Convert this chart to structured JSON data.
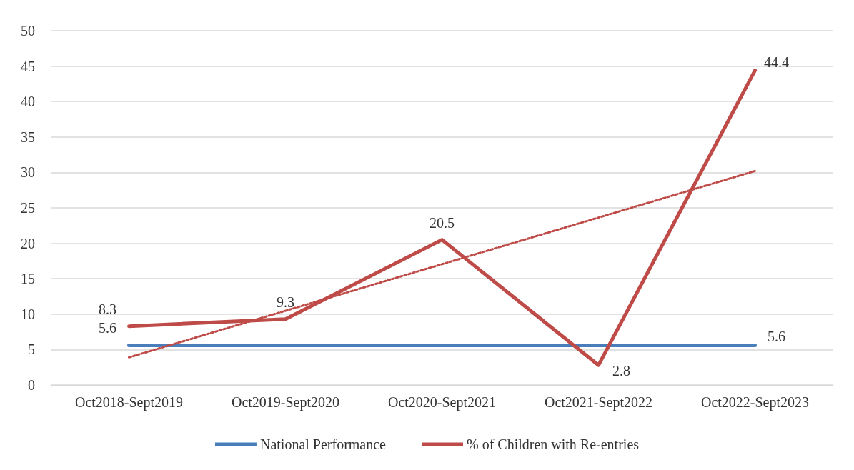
{
  "chart_data": {
    "type": "line",
    "categories": [
      "Oct2018-Sept2019",
      "Oct2019-Sept2020",
      "Oct2020-Sept2021",
      "Oct2021-Sept2022",
      "Oct2022-Sept2023"
    ],
    "series": [
      {
        "name": "National Performance",
        "color": "#4a7ebb",
        "values": [
          5.6,
          5.6,
          5.6,
          5.6,
          5.6
        ],
        "value_labels": [
          "5.6",
          null,
          null,
          null,
          "5.6"
        ],
        "line_style": "solid"
      },
      {
        "name": "% of Children with Re-entries",
        "color": "#be4b48",
        "values": [
          8.3,
          9.3,
          20.5,
          2.8,
          44.4
        ],
        "value_labels": [
          "8.3",
          "9.3",
          "20.5",
          "2.8",
          "44.4"
        ],
        "line_style": "solid"
      },
      {
        "type": "line",
        "color": "#be4b48",
        "x": [
          "Oct2018-Sept2019",
          "Oct2022-Sept2023"
        ],
        "values": [
          3.9,
          30.2
        ],
        "line_style": "dotted"
      }
    ],
    "ylim": [
      0,
      50
    ],
    "yticks": [
      0,
      5,
      10,
      15,
      20,
      25,
      30,
      35,
      40,
      45,
      50
    ],
    "grid": "y",
    "legend": "bottom",
    "marker": "none"
  }
}
